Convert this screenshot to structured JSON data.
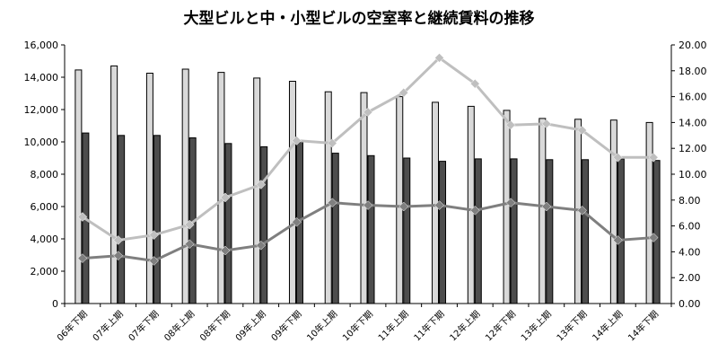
{
  "title": "大型ビルと中・小型ビルの空室率と継続賃料の推移",
  "chart_data": {
    "type": "bar",
    "title": "大型ビルと中・小型ビルの空室率と継続賃料の推移",
    "categories": [
      "06年下期",
      "07年上期",
      "07年下期",
      "08年上期",
      "08年下期",
      "09年上期",
      "09年下期",
      "10年上期",
      "10年下期",
      "11年上期",
      "11年下期",
      "12年上期",
      "12年下期",
      "13年上期",
      "13年下期",
      "14年上期",
      "14年下期"
    ],
    "series": [
      {
        "kind": "bar",
        "axis": "left",
        "color": "#d9d9d9",
        "values": [
          14450,
          14700,
          14250,
          14500,
          14300,
          13950,
          13750,
          13100,
          13050,
          12800,
          12450,
          12200,
          11950,
          11450,
          11400,
          11350,
          11200
        ]
      },
      {
        "kind": "bar",
        "axis": "left",
        "color": "#4d4d4d",
        "values": [
          10550,
          10400,
          10400,
          10250,
          9900,
          9700,
          10000,
          9300,
          9150,
          9000,
          8800,
          8950,
          8950,
          8900,
          8900,
          8950,
          8850
        ]
      },
      {
        "kind": "line",
        "axis": "right",
        "color": "#bfbfbf",
        "values": [
          6.7,
          4.9,
          5.3,
          6.1,
          8.2,
          9.2,
          12.6,
          12.4,
          14.8,
          16.3,
          19.0,
          17.0,
          13.8,
          13.9,
          13.4,
          11.3,
          11.3
        ]
      },
      {
        "kind": "line",
        "axis": "right",
        "color": "#7f7f7f",
        "values": [
          3.5,
          3.7,
          3.3,
          4.6,
          4.1,
          4.5,
          6.3,
          7.8,
          7.6,
          7.5,
          7.6,
          7.2,
          7.8,
          7.5,
          7.2,
          4.9,
          5.1
        ]
      }
    ],
    "y_left": {
      "range": [
        0,
        16000
      ],
      "ticks": [
        "0",
        "2,000",
        "4,000",
        "6,000",
        "8,000",
        "10,000",
        "12,000",
        "14,000",
        "16,000"
      ]
    },
    "y_right": {
      "range": [
        0,
        20
      ],
      "ticks": [
        "0.00",
        "2.00",
        "4.00",
        "6.00",
        "8.00",
        "10.00",
        "12.00",
        "14.00",
        "16.00",
        "18.00",
        "20.00"
      ]
    },
    "grid": false,
    "legend": "none"
  }
}
